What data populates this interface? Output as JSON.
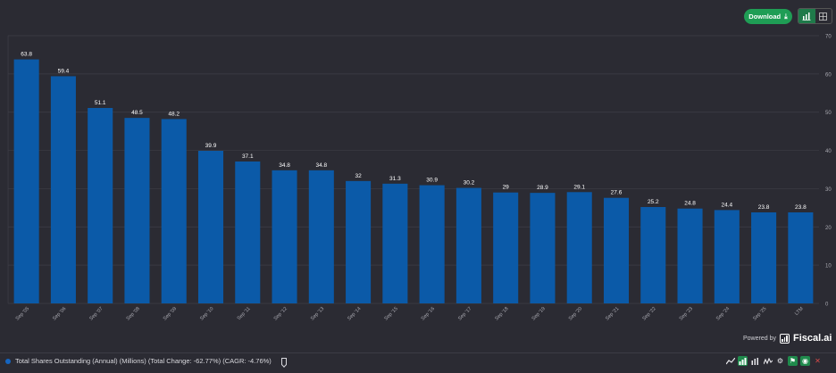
{
  "header": {
    "download_label": "Download",
    "download_icon": "download-icon",
    "view_options": [
      "bar-chart-view",
      "table-view"
    ],
    "active_view": "bar-chart-view",
    "accent_color": "#1f9d55"
  },
  "chart_data": {
    "type": "bar",
    "title": "Total Shares Outstanding (Annual) (Millions)",
    "categories": [
      "Sep '05",
      "Sep '06",
      "Sep '07",
      "Sep '08",
      "Sep '09",
      "Sep '10",
      "Sep '11",
      "Sep '12",
      "Sep '13",
      "Sep '14",
      "Sep '15",
      "Sep '16",
      "Sep '17",
      "Sep '18",
      "Sep '19",
      "Sep '20",
      "Sep '21",
      "Sep '22",
      "Sep '23",
      "Sep '24",
      "Sep '25",
      "LTM"
    ],
    "values": [
      63.8,
      59.4,
      51.1,
      48.5,
      48.2,
      39.9,
      37.1,
      34.8,
      34.8,
      32,
      31.3,
      30.9,
      30.2,
      29,
      28.9,
      29.1,
      27.6,
      25.2,
      24.8,
      24.4,
      23.8,
      23.8
    ],
    "labels": [
      "63.8",
      "59.4",
      "51.1",
      "48.5",
      "48.2",
      "39.9",
      "37.1",
      "34.8",
      "34.8",
      "32",
      "31.3",
      "30.9",
      "30.2",
      "29",
      "28.9",
      "29.1",
      "27.6",
      "25.2",
      "24.8",
      "24.4",
      "23.8",
      "23.8"
    ],
    "ylim": [
      0,
      70
    ],
    "yticks": [
      "0",
      "10",
      "20",
      "30",
      "40",
      "50",
      "60",
      "70"
    ],
    "xlabel": "",
    "ylabel": "",
    "grid": true,
    "bar_color": "#0b5aa8",
    "grid_color": "#3e3e47"
  },
  "footer": {
    "legend_text": "Total Shares Outstanding (Annual) (Millions) (Total Change: -62.77%) (CAGR: -4.76%)",
    "legend_color": "#1565c0",
    "powered_by": "Powered by",
    "brand": "Fiscal.ai",
    "tools": [
      "line-chart-icon",
      "bar-chart-icon",
      "bar-outline-icon",
      "area-chart-icon",
      "gear-icon",
      "tag-icon",
      "eye-icon",
      "close-icon"
    ]
  }
}
